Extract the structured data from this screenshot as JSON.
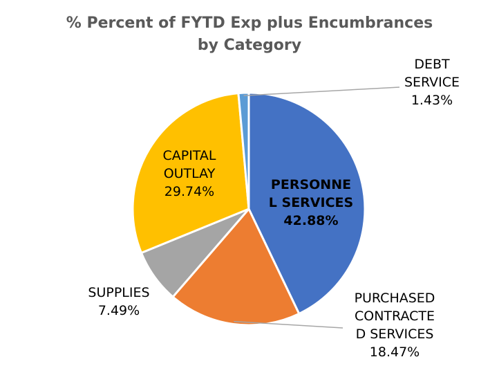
{
  "chart_data": {
    "type": "pie",
    "title_lines": [
      "% Percent of FYTD Exp plus Encumbrances",
      "by Category"
    ],
    "slices": [
      {
        "name": "PERSONNEL SERVICES",
        "value": 42.88,
        "color": "#4472C4",
        "label_lines": [
          "PERSONNE",
          "L SERVICES",
          "42.88%"
        ]
      },
      {
        "name": "PURCHASED CONTRACTED SERVICES",
        "value": 18.47,
        "color": "#ED7D31",
        "label_lines": [
          "PURCHASED",
          "CONTRACTE",
          "D SERVICES",
          "18.47%"
        ]
      },
      {
        "name": "SUPPLIES",
        "value": 7.49,
        "color": "#A5A5A5",
        "label_lines": [
          "SUPPLIES",
          "7.49%"
        ]
      },
      {
        "name": "CAPITAL OUTLAY",
        "value": 29.74,
        "color": "#FFC000",
        "label_lines": [
          "CAPITAL",
          "OUTLAY",
          "29.74%"
        ]
      },
      {
        "name": "DEBT SERVICE",
        "value": 1.43,
        "color": "#5B9BD5",
        "label_lines": [
          "DEBT",
          "SERVICE",
          "1.43%"
        ]
      }
    ],
    "start_angle_deg": 0,
    "direction": "clockwise",
    "legend": "none"
  }
}
